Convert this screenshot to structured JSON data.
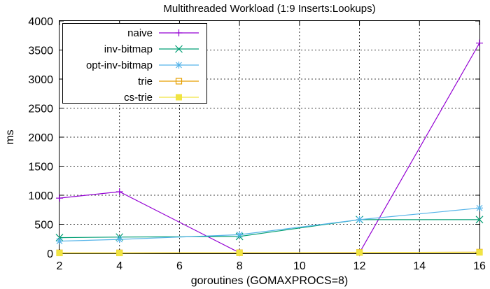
{
  "chart_data": {
    "type": "line",
    "title": "Multithreaded Workload (1:9 Inserts:Lookups)",
    "xlabel": "goroutines (GOMAXPROCS=8)",
    "ylabel": "ms",
    "xlim": [
      2,
      16
    ],
    "ylim": [
      0,
      4000
    ],
    "xticks": [
      2,
      4,
      6,
      8,
      10,
      12,
      14,
      16
    ],
    "yticks": [
      0,
      500,
      1000,
      1500,
      2000,
      2500,
      3000,
      3500,
      4000
    ],
    "grid": true,
    "legend_position": "top-left",
    "x": [
      2,
      4,
      8,
      12,
      16
    ],
    "series": [
      {
        "name": "naive",
        "values": [
          950,
          1060,
          10,
          10,
          3620
        ],
        "color": "#9400d3",
        "marker": "plus"
      },
      {
        "name": "inv-bitmap",
        "values": [
          270,
          280,
          290,
          580,
          580
        ],
        "color": "#009e73",
        "marker": "cross"
      },
      {
        "name": "opt-inv-bitmap",
        "values": [
          210,
          240,
          320,
          580,
          780
        ],
        "color": "#56b4e9",
        "marker": "star"
      },
      {
        "name": "trie",
        "values": [
          8,
          8,
          10,
          15,
          20
        ],
        "color": "#e69f00",
        "marker": "open-square"
      },
      {
        "name": "cs-trie",
        "values": [
          5,
          5,
          8,
          12,
          15
        ],
        "color": "#f0e442",
        "marker": "filled-square"
      }
    ]
  }
}
